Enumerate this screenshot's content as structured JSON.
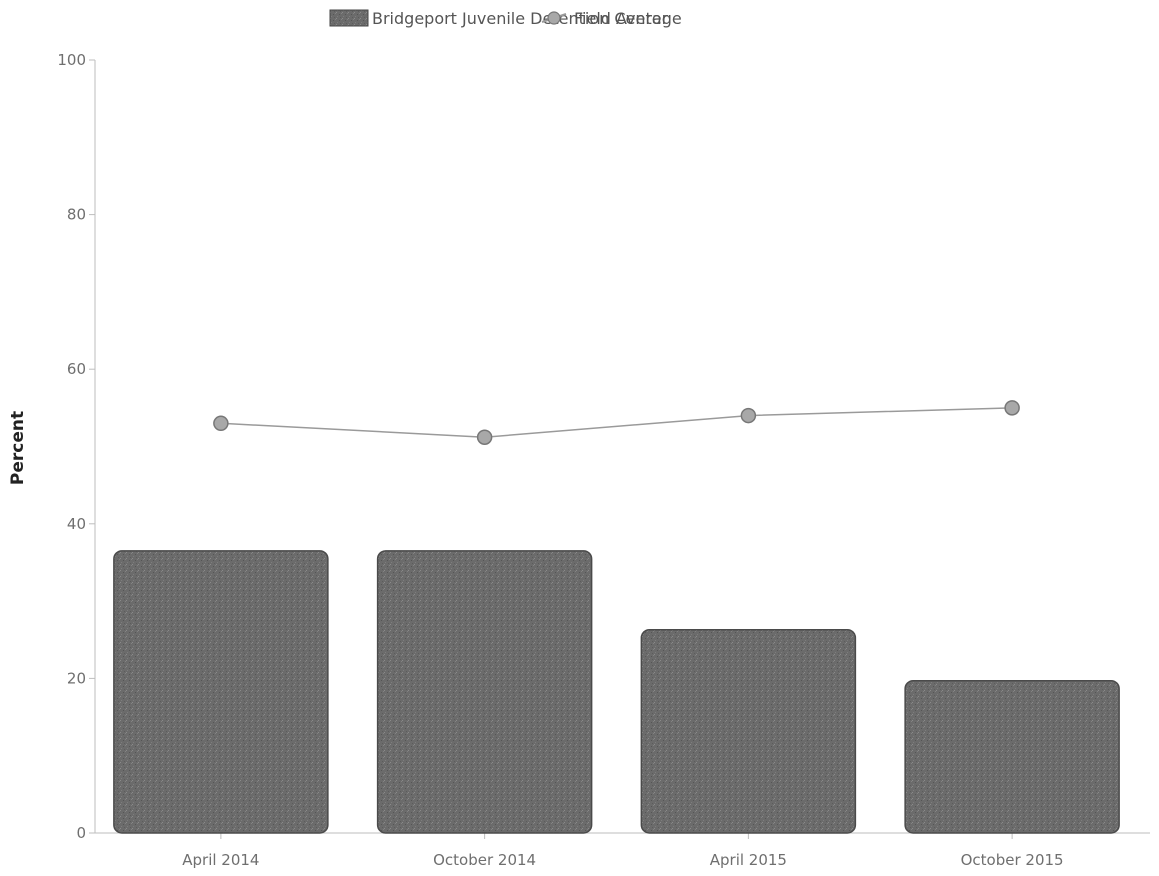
{
  "chart_data": {
    "type": "bar",
    "title": "",
    "xlabel": "",
    "ylabel": "Percent",
    "ylim": [
      0,
      100
    ],
    "yticks": [
      0,
      20,
      40,
      60,
      80,
      100
    ],
    "grid": false,
    "legend_position": "top-center",
    "categories": [
      "April 2014",
      "October 2014",
      "April 2015",
      "October 2015"
    ],
    "series": [
      {
        "name": "Bridgeport Juvenile Detention Center",
        "kind": "bar",
        "color": "#6b6b6b",
        "values": [
          36.5,
          36.5,
          26.3,
          19.7
        ]
      },
      {
        "name": "Field Average",
        "kind": "line",
        "color": "#9a9a9a",
        "values": [
          53.0,
          51.2,
          54.0,
          55.0
        ]
      }
    ]
  }
}
